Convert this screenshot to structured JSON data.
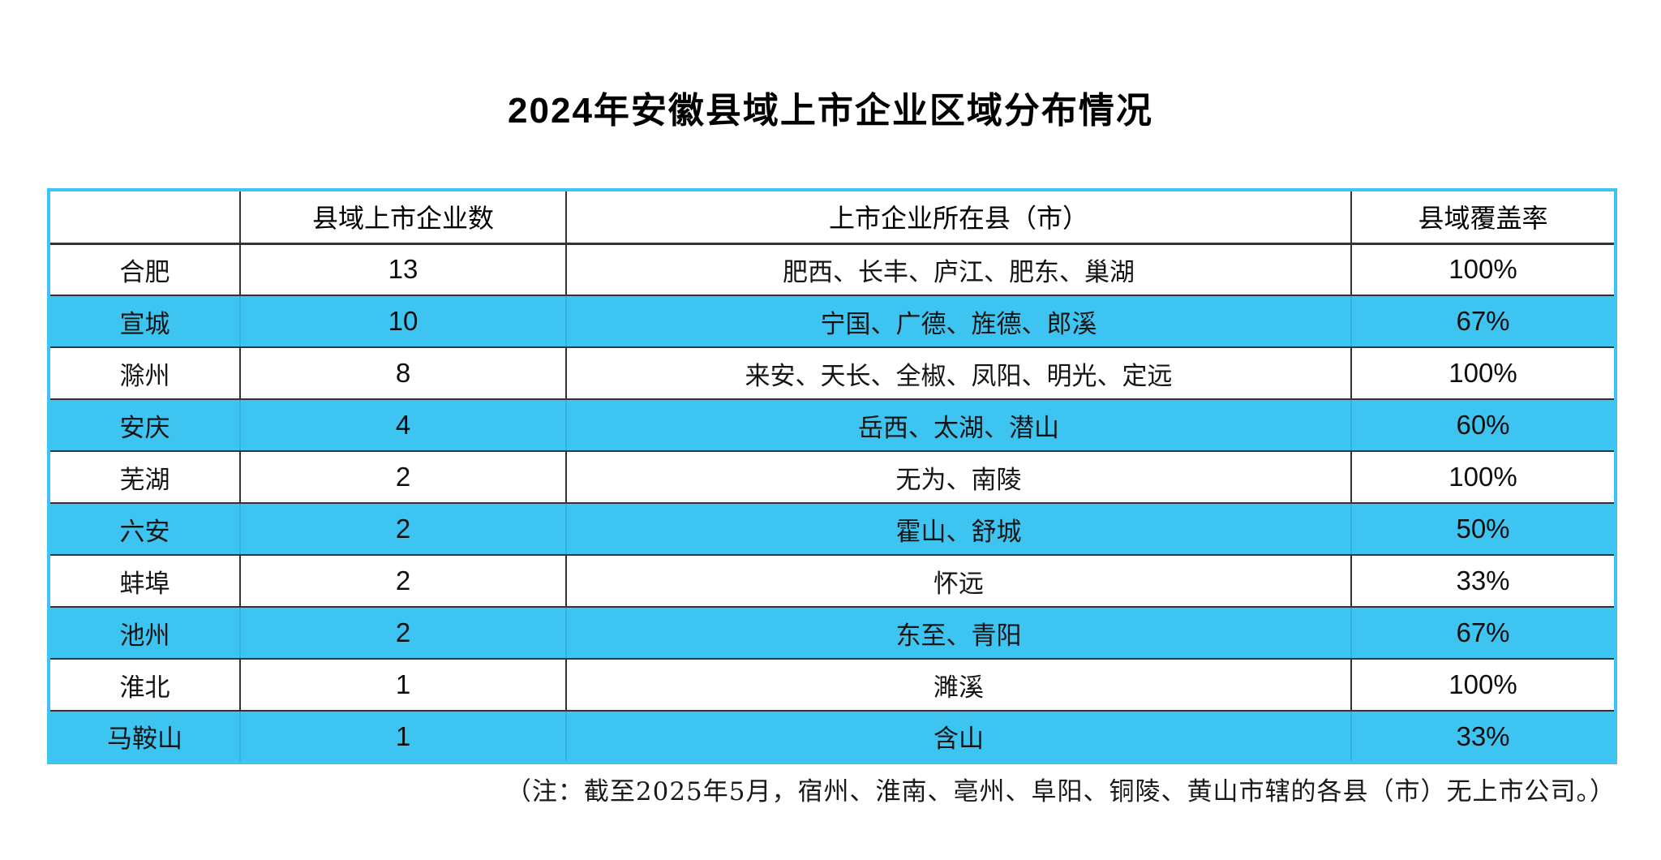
{
  "title": "2024年安徽县域上市企业区域分布情况",
  "note": "（注：截至2025年5月，宿州、淮南、亳州、阜阳、铜陵、黄山市辖的各县（市）无上市公司。）",
  "colors": {
    "highlight_row": "#3EC4F0",
    "table_border": "#3EC4F0",
    "grid_line": "#333333"
  },
  "table": {
    "headers": {
      "city": "",
      "count": "县域上市企业数",
      "counties": "上市企业所在县（市）",
      "coverage": "县域覆盖率"
    },
    "rows": [
      {
        "city": "合肥",
        "count": "13",
        "counties": "肥西、长丰、庐江、肥东、巢湖",
        "coverage": "100%",
        "highlight": false
      },
      {
        "city": "宣城",
        "count": "10",
        "counties": "宁国、广德、旌德、郎溪",
        "coverage": "67%",
        "highlight": true
      },
      {
        "city": "滁州",
        "count": "8",
        "counties": "来安、天长、全椒、凤阳、明光、定远",
        "coverage": "100%",
        "highlight": false
      },
      {
        "city": "安庆",
        "count": "4",
        "counties": "岳西、太湖、潜山",
        "coverage": "60%",
        "highlight": true
      },
      {
        "city": "芜湖",
        "count": "2",
        "counties": "无为、南陵",
        "coverage": "100%",
        "highlight": false
      },
      {
        "city": "六安",
        "count": "2",
        "counties": "霍山、舒城",
        "coverage": "50%",
        "highlight": true
      },
      {
        "city": "蚌埠",
        "count": "2",
        "counties": "怀远",
        "coverage": "33%",
        "highlight": false
      },
      {
        "city": "池州",
        "count": "2",
        "counties": "东至、青阳",
        "coverage": "67%",
        "highlight": true
      },
      {
        "city": "淮北",
        "count": "1",
        "counties": "濉溪",
        "coverage": "100%",
        "highlight": false
      },
      {
        "city": "马鞍山",
        "count": "1",
        "counties": "含山",
        "coverage": "33%",
        "highlight": true
      }
    ]
  },
  "chart_data": {
    "type": "table",
    "title": "2024年安徽县域上市企业区域分布情况",
    "columns": [
      "",
      "县域上市企业数",
      "上市企业所在县（市）",
      "县域覆盖率"
    ],
    "rows": [
      [
        "合肥",
        13,
        "肥西、长丰、庐江、肥东、巢湖",
        "100%"
      ],
      [
        "宣城",
        10,
        "宁国、广德、旌德、郎溪",
        "67%"
      ],
      [
        "滁州",
        8,
        "来安、天长、全椒、凤阳、明光、定远",
        "100%"
      ],
      [
        "安庆",
        4,
        "岳西、太湖、潜山",
        "60%"
      ],
      [
        "芜湖",
        2,
        "无为、南陵",
        "100%"
      ],
      [
        "六安",
        2,
        "霍山、舒城",
        "50%"
      ],
      [
        "蚌埠",
        2,
        "怀远",
        "33%"
      ],
      [
        "池州",
        2,
        "东至、青阳",
        "67%"
      ],
      [
        "淮北",
        1,
        "濉溪",
        "100%"
      ],
      [
        "马鞍山",
        1,
        "含山",
        "33%"
      ]
    ],
    "highlighted_row_indices": [
      1,
      3,
      5,
      7,
      9
    ],
    "note": "（注：截至2025年5月，宿州、淮南、亳州、阜阳、铜陵、黄山市辖的各县（市）无上市公司。）"
  }
}
